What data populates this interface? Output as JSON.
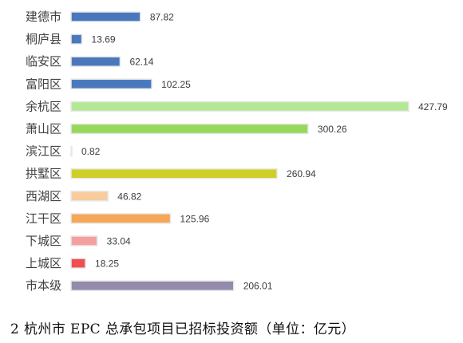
{
  "chart_data": {
    "type": "bar",
    "orientation": "horizontal",
    "categories": [
      "建德市",
      "桐庐县",
      "临安区",
      "富阳区",
      "余杭区",
      "萧山区",
      "滨江区",
      "拱墅区",
      "西湖区",
      "江干区",
      "下城区",
      "上城区",
      "市本级"
    ],
    "values": [
      87.82,
      13.69,
      62.14,
      102.25,
      427.79,
      300.26,
      0.82,
      260.94,
      46.82,
      125.96,
      33.04,
      18.25,
      206.01
    ],
    "value_labels": [
      "87.82",
      "13.69",
      "62.14",
      "102.25",
      "427.79",
      "300.26",
      "0.82",
      "260.94",
      "46.82",
      "125.96",
      "33.04",
      "18.25",
      "206.01"
    ],
    "colors": [
      "#4a78bd",
      "#4a78bd",
      "#4a78bd",
      "#4a78bd",
      "#b4e896",
      "#96d95a",
      "#78c850",
      "#cfcf2a",
      "#f9cc9e",
      "#f6a657",
      "#f5a0a0",
      "#ef4f4f",
      "#938aac"
    ],
    "xlim": [
      0,
      427.79
    ],
    "grid": false,
    "legend": "none",
    "title": "",
    "xlabel": "",
    "ylabel": "",
    "caption": "2 杭州市 EPC 总承包项目已招标投资额（单位：亿元）"
  }
}
